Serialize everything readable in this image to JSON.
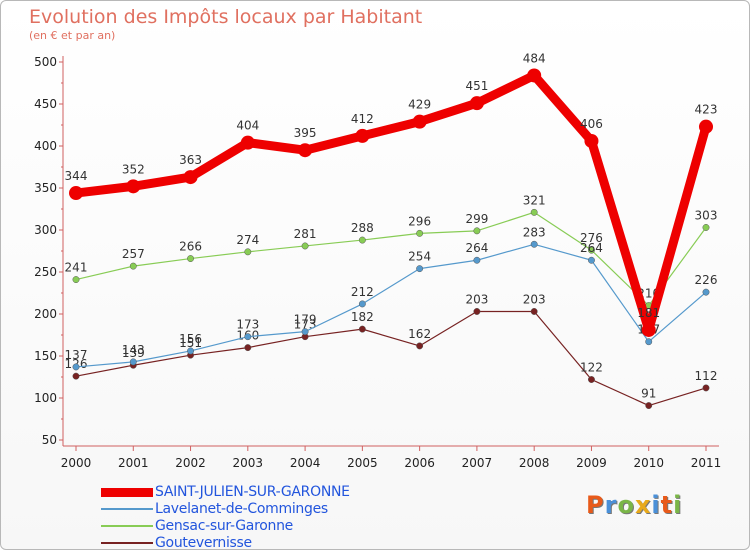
{
  "header": {
    "title": "Evolution des Impôts locaux par Habitant",
    "subtitle": "(en € et par an)"
  },
  "logo": {
    "text": "Proxiti",
    "letters": [
      "P",
      "r",
      "o",
      "x",
      "i",
      "t",
      "i"
    ],
    "colors": [
      "#e85a1a",
      "#4a90d9",
      "#7ab648",
      "#e8a91a",
      "#4a90d9",
      "#e85a1a",
      "#7ab648"
    ]
  },
  "chart_data": {
    "type": "line",
    "title": "Evolution des Impôts locaux par Habitant",
    "subtitle": "(en € et par an)",
    "xlabel": "",
    "ylabel": "",
    "x": [
      2000,
      2001,
      2002,
      2003,
      2004,
      2005,
      2006,
      2007,
      2008,
      2009,
      2010,
      2011
    ],
    "ylim": [
      50,
      500
    ],
    "yticks": [
      50,
      100,
      150,
      200,
      250,
      300,
      350,
      400,
      450,
      500
    ],
    "grid": false,
    "legend_position": "bottom-left",
    "series": [
      {
        "name": "SAINT-JULIEN-SUR-GARONNE",
        "color": "#ee0000",
        "emphasis": "thick",
        "values": [
          344,
          352,
          363,
          404,
          395,
          412,
          429,
          451,
          484,
          406,
          181,
          423
        ]
      },
      {
        "name": "Lavelanet-de-Comminges",
        "color": "#5599cc",
        "emphasis": "normal",
        "values": [
          137,
          143,
          156,
          173,
          179,
          212,
          254,
          264,
          283,
          264,
          167,
          226
        ]
      },
      {
        "name": "Gensac-sur-Garonne",
        "color": "#88cc55",
        "emphasis": "normal",
        "values": [
          241,
          257,
          266,
          274,
          281,
          288,
          296,
          299,
          321,
          276,
          210,
          303
        ]
      },
      {
        "name": "Goutevernisse",
        "color": "#772222",
        "emphasis": "normal",
        "values": [
          126,
          139,
          151,
          160,
          173,
          182,
          162,
          203,
          203,
          122,
          91,
          112
        ]
      }
    ]
  }
}
